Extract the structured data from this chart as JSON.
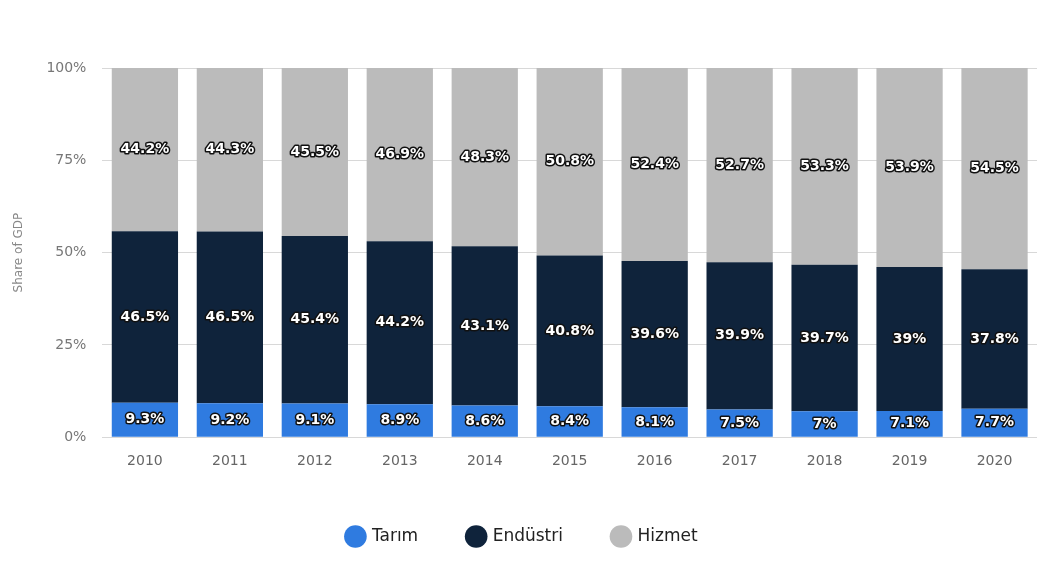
{
  "chart_data": {
    "type": "bar",
    "stacked": true,
    "ylabel": "Share of GDP",
    "categories": [
      "2010",
      "2011",
      "2012",
      "2013",
      "2014",
      "2015",
      "2016",
      "2017",
      "2018",
      "2019",
      "2020"
    ],
    "series": [
      {
        "name": "Tarım",
        "color": "#2f7be0",
        "values": [
          9.3,
          9.2,
          9.1,
          8.9,
          8.6,
          8.4,
          8.1,
          7.5,
          7,
          7.1,
          7.7
        ],
        "value_labels": [
          "9.3%",
          "9.2%",
          "9.1%",
          "8.9%",
          "8.6%",
          "8.4%",
          "8.1%",
          "7.5%",
          "7%",
          "7.1%",
          "7.7%"
        ]
      },
      {
        "name": "Endüstri",
        "color": "#0f233b",
        "values": [
          46.5,
          46.5,
          45.4,
          44.2,
          43.1,
          40.8,
          39.6,
          39.9,
          39.7,
          39,
          37.8
        ],
        "value_labels": [
          "46.5%",
          "46.5%",
          "45.4%",
          "44.2%",
          "43.1%",
          "40.8%",
          "39.6%",
          "39.9%",
          "39.7%",
          "39%",
          "37.8%"
        ]
      },
      {
        "name": "Hizmet",
        "color": "#bbbbbb",
        "values": [
          44.2,
          44.3,
          45.5,
          46.9,
          48.3,
          50.8,
          52.4,
          52.7,
          53.3,
          53.9,
          54.5
        ],
        "value_labels": [
          "44.2%",
          "44.3%",
          "45.5%",
          "46.9%",
          "48.3%",
          "50.8%",
          "52.4%",
          "52.7%",
          "53.3%",
          "53.9%",
          "54.5%"
        ]
      }
    ],
    "ylim": [
      0,
      100
    ],
    "yticks": [
      {
        "value": 0,
        "label": "0%"
      },
      {
        "value": 25,
        "label": "25%"
      },
      {
        "value": 50,
        "label": "50%"
      },
      {
        "value": 75,
        "label": "75%"
      },
      {
        "value": 100,
        "label": "100%"
      }
    ],
    "grid": "y",
    "legend": "bottom"
  }
}
